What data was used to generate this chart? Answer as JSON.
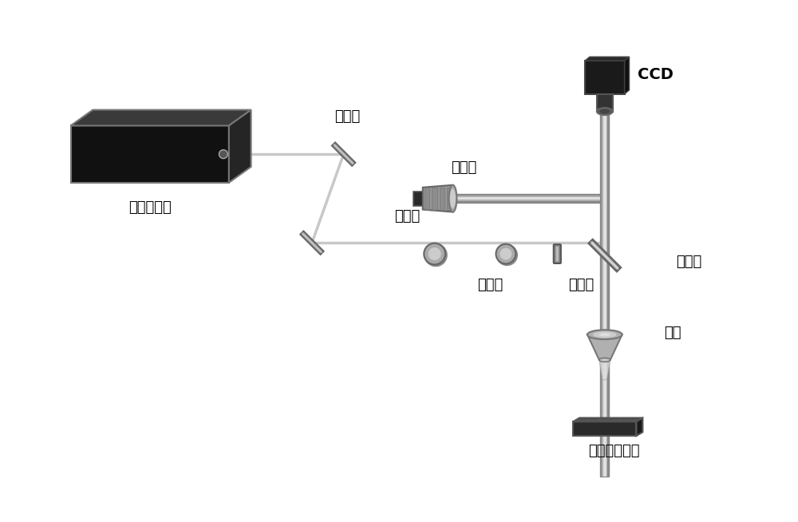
{
  "title": "",
  "background_color": "#ffffff",
  "labels": {
    "laser": "飞秒激光器",
    "mirror": "反射镜",
    "halfwave": "半波片",
    "attenuator": "衰减片",
    "shutter": "光快门",
    "beamsplitter": "分束镜",
    "lamp": "照明灯",
    "ccd": "CCD",
    "objective": "物镜",
    "stage": "六维移动平台"
  },
  "figsize": [
    10.0,
    6.54
  ],
  "dpi": 100,
  "font_size": 13
}
